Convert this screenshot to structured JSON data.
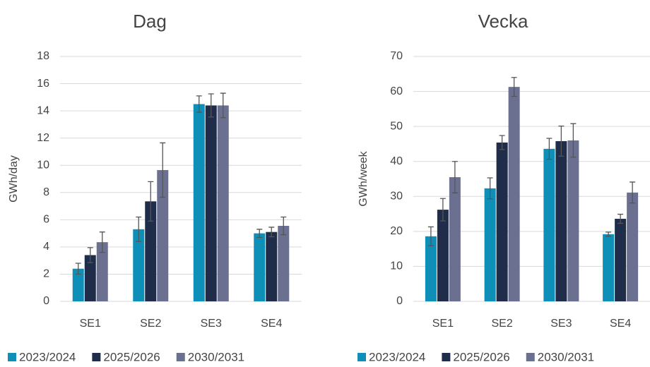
{
  "chart_data": [
    {
      "type": "bar",
      "title": "Dag",
      "y_label": "GWh/day",
      "categories": [
        "SE1",
        "SE2",
        "SE3",
        "SE4"
      ],
      "series": [
        {
          "name": "2023/2024",
          "color": "#0e8fb8",
          "values": [
            2.4,
            5.3,
            14.5,
            5.0
          ],
          "errors": [
            0.4,
            0.9,
            0.6,
            0.3
          ]
        },
        {
          "name": "2025/2026",
          "color": "#1f2d4a",
          "values": [
            3.4,
            7.35,
            14.4,
            5.1
          ],
          "errors": [
            0.55,
            1.45,
            0.85,
            0.35
          ]
        },
        {
          "name": "2030/2031",
          "color": "#6b7091",
          "values": [
            4.35,
            9.65,
            14.4,
            5.55
          ],
          "errors": [
            0.75,
            2.0,
            0.9,
            0.65
          ]
        }
      ],
      "ylim": [
        0,
        18
      ],
      "yticks": [
        0,
        2,
        4,
        6,
        8,
        10,
        12,
        14,
        16,
        18
      ],
      "grid": true
    },
    {
      "type": "bar",
      "title": "Vecka",
      "y_label": "GWh/week",
      "categories": [
        "SE1",
        "SE2",
        "SE3",
        "SE4"
      ],
      "series": [
        {
          "name": "2023/2024",
          "color": "#0e8fb8",
          "values": [
            18.6,
            32.3,
            43.6,
            19.2
          ],
          "errors": [
            2.7,
            3.0,
            3.0,
            0.6
          ]
        },
        {
          "name": "2025/2026",
          "color": "#1f2d4a",
          "values": [
            26.2,
            45.4,
            45.8,
            23.6
          ],
          "errors": [
            3.2,
            2.0,
            4.3,
            1.3
          ]
        },
        {
          "name": "2030/2031",
          "color": "#6b7091",
          "values": [
            35.5,
            61.3,
            46.0,
            31.1
          ],
          "errors": [
            4.5,
            2.7,
            4.8,
            3.0
          ]
        }
      ],
      "ylim": [
        0,
        70
      ],
      "yticks": [
        0,
        10,
        20,
        30,
        40,
        50,
        60,
        70
      ],
      "grid": true
    }
  ]
}
